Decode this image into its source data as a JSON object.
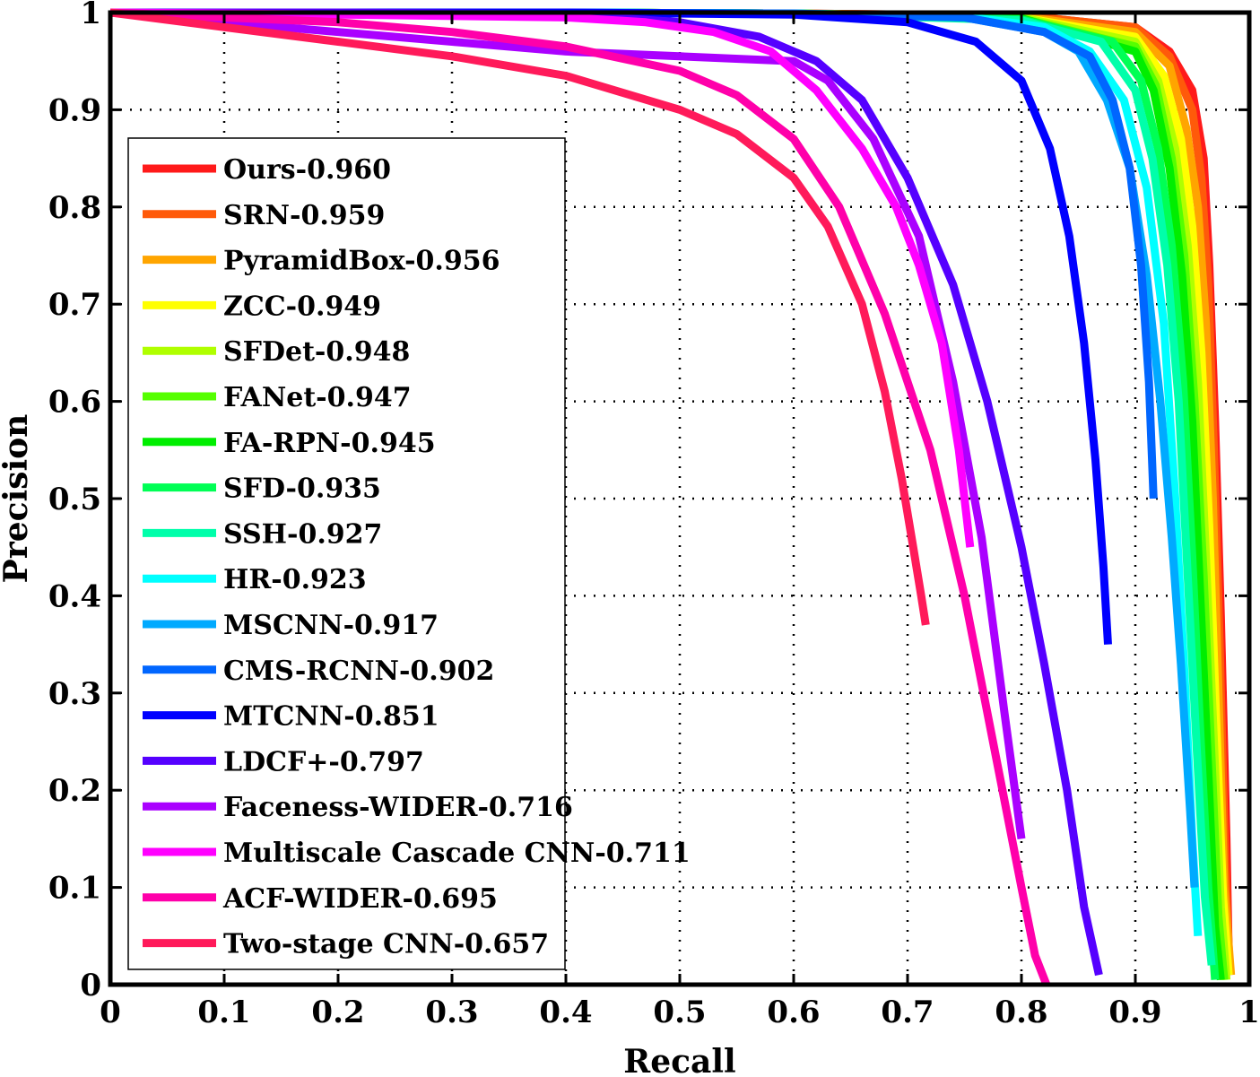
{
  "chart_data": {
    "type": "line",
    "title": "",
    "xlabel": "Recall",
    "ylabel": "Precision",
    "xlim": [
      0,
      1
    ],
    "ylim": [
      0,
      1
    ],
    "xticks": [
      "0",
      "0.1",
      "0.2",
      "0.3",
      "0.4",
      "0.5",
      "0.6",
      "0.7",
      "0.8",
      "0.9",
      "1"
    ],
    "yticks": [
      "0",
      "0.1",
      "0.2",
      "0.3",
      "0.4",
      "0.5",
      "0.6",
      "0.7",
      "0.8",
      "0.9",
      "1"
    ],
    "grid": true,
    "legend_position": "left",
    "series": [
      {
        "name": "Ours-0.960",
        "color": "#ff1a1a",
        "x": [
          0,
          0.2,
          0.4,
          0.6,
          0.8,
          0.9,
          0.93,
          0.95,
          0.96,
          0.965,
          0.97,
          0.975,
          0.98,
          0.982
        ],
        "y": [
          1.0,
          1.0,
          1.0,
          0.999,
          0.997,
          0.985,
          0.96,
          0.92,
          0.85,
          0.74,
          0.58,
          0.38,
          0.15,
          0.03
        ]
      },
      {
        "name": "SRN-0.959",
        "color": "#ff5a0a",
        "x": [
          0,
          0.2,
          0.4,
          0.6,
          0.8,
          0.9,
          0.93,
          0.95,
          0.958,
          0.964,
          0.969,
          0.974,
          0.979,
          0.983
        ],
        "y": [
          1.0,
          1.0,
          1.0,
          0.999,
          0.997,
          0.985,
          0.955,
          0.9,
          0.83,
          0.72,
          0.55,
          0.35,
          0.12,
          0.01
        ]
      },
      {
        "name": "PyramidBox-0.956",
        "color": "#ffa500",
        "x": [
          0,
          0.2,
          0.4,
          0.6,
          0.8,
          0.9,
          0.93,
          0.945,
          0.955,
          0.962,
          0.968,
          0.973,
          0.978,
          0.984
        ],
        "y": [
          1.0,
          1.0,
          1.0,
          0.999,
          0.996,
          0.98,
          0.945,
          0.88,
          0.8,
          0.68,
          0.5,
          0.3,
          0.1,
          0.01
        ]
      },
      {
        "name": "ZCC-0.949",
        "color": "#ffff00",
        "x": [
          0,
          0.2,
          0.4,
          0.6,
          0.8,
          0.9,
          0.925,
          0.94,
          0.95,
          0.958,
          0.965,
          0.971,
          0.977,
          0.982
        ],
        "y": [
          1.0,
          1.0,
          1.0,
          0.999,
          0.995,
          0.975,
          0.935,
          0.87,
          0.78,
          0.65,
          0.47,
          0.27,
          0.09,
          0.01
        ]
      },
      {
        "name": "SFDet-0.948",
        "color": "#b0ff00",
        "x": [
          0,
          0.2,
          0.4,
          0.6,
          0.8,
          0.9,
          0.92,
          0.935,
          0.946,
          0.955,
          0.962,
          0.969,
          0.975,
          0.98
        ],
        "y": [
          1.0,
          1.0,
          1.0,
          0.999,
          0.995,
          0.97,
          0.93,
          0.86,
          0.76,
          0.62,
          0.44,
          0.25,
          0.08,
          0.005
        ]
      },
      {
        "name": "FANet-0.947",
        "color": "#55ff00",
        "x": [
          0,
          0.2,
          0.4,
          0.6,
          0.8,
          0.9,
          0.918,
          0.932,
          0.943,
          0.952,
          0.96,
          0.967,
          0.973,
          0.978
        ],
        "y": [
          1.0,
          1.0,
          1.0,
          0.999,
          0.994,
          0.965,
          0.925,
          0.85,
          0.75,
          0.6,
          0.42,
          0.23,
          0.07,
          0.005
        ]
      },
      {
        "name": "FA-RPN-0.945",
        "color": "#00ee00",
        "x": [
          0,
          0.2,
          0.4,
          0.6,
          0.8,
          0.9,
          0.916,
          0.93,
          0.941,
          0.95,
          0.957,
          0.964,
          0.97,
          0.975
        ],
        "y": [
          1.0,
          1.0,
          1.0,
          0.999,
          0.994,
          0.96,
          0.92,
          0.84,
          0.73,
          0.58,
          0.4,
          0.22,
          0.06,
          0.005
        ]
      },
      {
        "name": "SFD-0.935",
        "color": "#00ff55",
        "x": [
          0,
          0.2,
          0.4,
          0.6,
          0.8,
          0.88,
          0.905,
          0.92,
          0.932,
          0.942,
          0.95,
          0.957,
          0.964,
          0.97
        ],
        "y": [
          1.0,
          1.0,
          1.0,
          0.999,
          0.993,
          0.97,
          0.93,
          0.86,
          0.76,
          0.62,
          0.44,
          0.26,
          0.1,
          0.005
        ]
      },
      {
        "name": "SSH-0.927",
        "color": "#00ffaa",
        "x": [
          0,
          0.2,
          0.4,
          0.6,
          0.8,
          0.87,
          0.9,
          0.915,
          0.928,
          0.938,
          0.946,
          0.954,
          0.961,
          0.967
        ],
        "y": [
          1.0,
          1.0,
          1.0,
          0.999,
          0.992,
          0.97,
          0.92,
          0.85,
          0.74,
          0.6,
          0.42,
          0.24,
          0.09,
          0.02
        ]
      },
      {
        "name": "HR-0.923",
        "color": "#00ffff",
        "x": [
          0,
          0.2,
          0.4,
          0.6,
          0.75,
          0.82,
          0.86,
          0.89,
          0.91,
          0.925,
          0.935,
          0.944,
          0.95,
          0.955
        ],
        "y": [
          1.0,
          1.0,
          1.0,
          0.999,
          0.996,
          0.985,
          0.96,
          0.91,
          0.82,
          0.68,
          0.5,
          0.3,
          0.15,
          0.05
        ]
      },
      {
        "name": "MSCNN-0.917",
        "color": "#00aaff",
        "x": [
          0,
          0.2,
          0.4,
          0.6,
          0.75,
          0.82,
          0.85,
          0.875,
          0.895,
          0.91,
          0.922,
          0.932,
          0.94,
          0.948,
          0.952
        ],
        "y": [
          1.0,
          1.0,
          1.0,
          0.999,
          0.995,
          0.98,
          0.96,
          0.91,
          0.84,
          0.73,
          0.6,
          0.46,
          0.33,
          0.18,
          0.1
        ]
      },
      {
        "name": "CMS-RCNN-0.902",
        "color": "#0066ff",
        "x": [
          0,
          0.2,
          0.4,
          0.6,
          0.75,
          0.82,
          0.86,
          0.88,
          0.895,
          0.905,
          0.912,
          0.916
        ],
        "y": [
          1.0,
          1.0,
          1.0,
          0.999,
          0.995,
          0.98,
          0.955,
          0.91,
          0.84,
          0.74,
          0.62,
          0.5
        ]
      },
      {
        "name": "MTCNN-0.851",
        "color": "#0000ff",
        "x": [
          0,
          0.2,
          0.4,
          0.6,
          0.7,
          0.76,
          0.8,
          0.825,
          0.842,
          0.855,
          0.865,
          0.872,
          0.876
        ],
        "y": [
          1.0,
          1.0,
          1.0,
          0.998,
          0.99,
          0.97,
          0.93,
          0.86,
          0.77,
          0.66,
          0.54,
          0.43,
          0.35
        ]
      },
      {
        "name": "LDCF+-0.797",
        "color": "#5500ff",
        "x": [
          0,
          0.2,
          0.4,
          0.5,
          0.57,
          0.62,
          0.66,
          0.7,
          0.74,
          0.77,
          0.8,
          0.82,
          0.84,
          0.855,
          0.868
        ],
        "y": [
          1.0,
          1.0,
          0.998,
          0.99,
          0.975,
          0.95,
          0.91,
          0.83,
          0.72,
          0.6,
          0.45,
          0.33,
          0.2,
          0.08,
          0.01
        ]
      },
      {
        "name": "Faceness-WIDER-0.716",
        "color": "#aa00ff",
        "x": [
          0,
          0.1,
          0.2,
          0.3,
          0.4,
          0.5,
          0.6,
          0.63,
          0.67,
          0.71,
          0.74,
          0.765,
          0.785,
          0.8
        ],
        "y": [
          1.0,
          0.99,
          0.98,
          0.97,
          0.96,
          0.955,
          0.95,
          0.93,
          0.87,
          0.77,
          0.62,
          0.46,
          0.28,
          0.15
        ]
      },
      {
        "name": "Multiscale Cascade CNN-0.711",
        "color": "#ff00ff",
        "x": [
          0,
          0.2,
          0.4,
          0.47,
          0.53,
          0.58,
          0.62,
          0.66,
          0.69,
          0.71,
          0.73,
          0.745,
          0.755
        ],
        "y": [
          1.0,
          0.998,
          0.995,
          0.99,
          0.98,
          0.96,
          0.92,
          0.86,
          0.8,
          0.74,
          0.66,
          0.55,
          0.45
        ]
      },
      {
        "name": "ACF-WIDER-0.695",
        "color": "#ff00aa",
        "x": [
          0,
          0.1,
          0.2,
          0.3,
          0.4,
          0.5,
          0.55,
          0.6,
          0.64,
          0.68,
          0.72,
          0.75,
          0.78,
          0.8,
          0.812,
          0.822
        ],
        "y": [
          1.0,
          0.995,
          0.99,
          0.98,
          0.965,
          0.94,
          0.915,
          0.87,
          0.8,
          0.69,
          0.55,
          0.4,
          0.22,
          0.1,
          0.03,
          0.0
        ]
      },
      {
        "name": "Two-stage CNN-0.657",
        "color": "#ff1a5a",
        "x": [
          0,
          0.1,
          0.2,
          0.3,
          0.4,
          0.5,
          0.55,
          0.6,
          0.63,
          0.66,
          0.68,
          0.695,
          0.705,
          0.712,
          0.716
        ],
        "y": [
          1.0,
          0.985,
          0.97,
          0.955,
          0.935,
          0.9,
          0.875,
          0.83,
          0.78,
          0.7,
          0.61,
          0.52,
          0.45,
          0.4,
          0.37
        ]
      }
    ]
  }
}
